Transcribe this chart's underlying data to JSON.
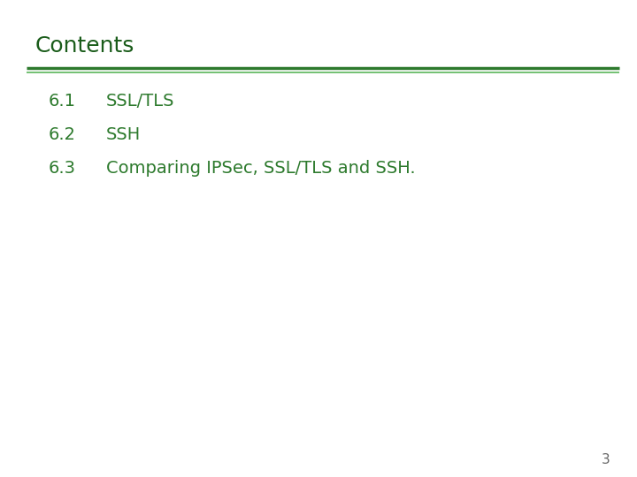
{
  "title": "Contents",
  "title_color": "#1a5c1a",
  "title_fontsize": 18,
  "title_bold": false,
  "line_color": "#2d7a2d",
  "line_color_light": "#5ab55a",
  "items": [
    {
      "number": "6.1",
      "text": "SSL/TLS"
    },
    {
      "number": "6.2",
      "text": "SSH"
    },
    {
      "number": "6.3",
      "text": "Comparing IPSec, SSL/TLS and SSH."
    }
  ],
  "item_color": "#2d7a2d",
  "item_number_fontsize": 14,
  "item_text_fontsize": 14,
  "page_number": "3",
  "page_number_color": "#666666",
  "page_number_fontsize": 11,
  "background_color": "#ffffff"
}
